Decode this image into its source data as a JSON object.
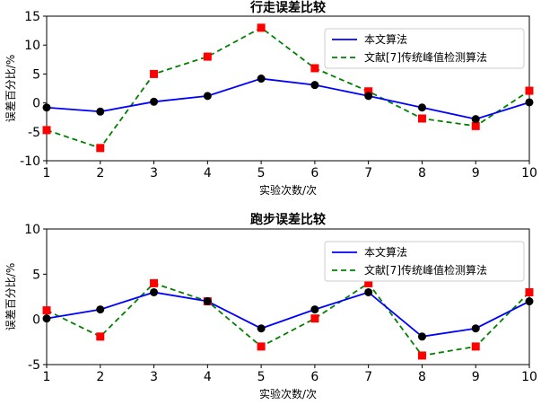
{
  "chart_data": [
    {
      "type": "line",
      "title": "行走误差比较",
      "xlabel": "实验次数/次",
      "ylabel": "误差百分比/%",
      "x": [
        1,
        2,
        3,
        4,
        5,
        6,
        7,
        8,
        9,
        10
      ],
      "xlim": [
        1,
        10
      ],
      "ylim": [
        -10,
        15
      ],
      "xticks": [
        "1",
        "2",
        "3",
        "4",
        "5",
        "6",
        "7",
        "8",
        "9",
        "10"
      ],
      "yticks": [
        -10,
        -5,
        0,
        5,
        10,
        15
      ],
      "grid": false,
      "legend_position": "top-right",
      "series": [
        {
          "name": "本文算法",
          "color": "#0000ff",
          "marker_color": "#000000",
          "marker": "circle",
          "linestyle": "solid",
          "values": [
            -0.8,
            -1.5,
            0.2,
            1.2,
            4.2,
            3.1,
            1.2,
            -0.8,
            -2.8,
            0.1
          ]
        },
        {
          "name": "文献[7]传统峰值检测算法",
          "color": "#008000",
          "marker_color": "#ff0000",
          "marker": "square",
          "linestyle": "dashed",
          "values": [
            -4.7,
            -7.8,
            5.0,
            8.0,
            13.0,
            6.0,
            2.0,
            -2.7,
            -4.0,
            2.1
          ]
        }
      ]
    },
    {
      "type": "line",
      "title": "跑步误差比较",
      "xlabel": "实验次数/次",
      "ylabel": "误差百分比/%",
      "x": [
        1,
        2,
        3,
        4,
        5,
        6,
        7,
        8,
        9,
        10
      ],
      "xlim": [
        1,
        10
      ],
      "ylim": [
        -5,
        10
      ],
      "xticks": [
        "1",
        "2",
        "3",
        "4",
        "5",
        "6",
        "7",
        "8",
        "9",
        "10"
      ],
      "yticks": [
        -5,
        0,
        5,
        10
      ],
      "grid": false,
      "legend_position": "top-right",
      "series": [
        {
          "name": "本文算法",
          "color": "#0000ff",
          "marker_color": "#000000",
          "marker": "circle",
          "linestyle": "solid",
          "values": [
            0.1,
            1.1,
            3.0,
            2.0,
            -1.0,
            1.1,
            3.0,
            -1.9,
            -1.0,
            2.0
          ]
        },
        {
          "name": "文献[7]传统峰值检测算法",
          "color": "#008000",
          "marker_color": "#ff0000",
          "marker": "square",
          "linestyle": "dashed",
          "values": [
            1.0,
            -1.9,
            4.0,
            2.0,
            -3.0,
            0.1,
            4.0,
            -4.0,
            -3.0,
            3.0
          ]
        }
      ]
    }
  ]
}
